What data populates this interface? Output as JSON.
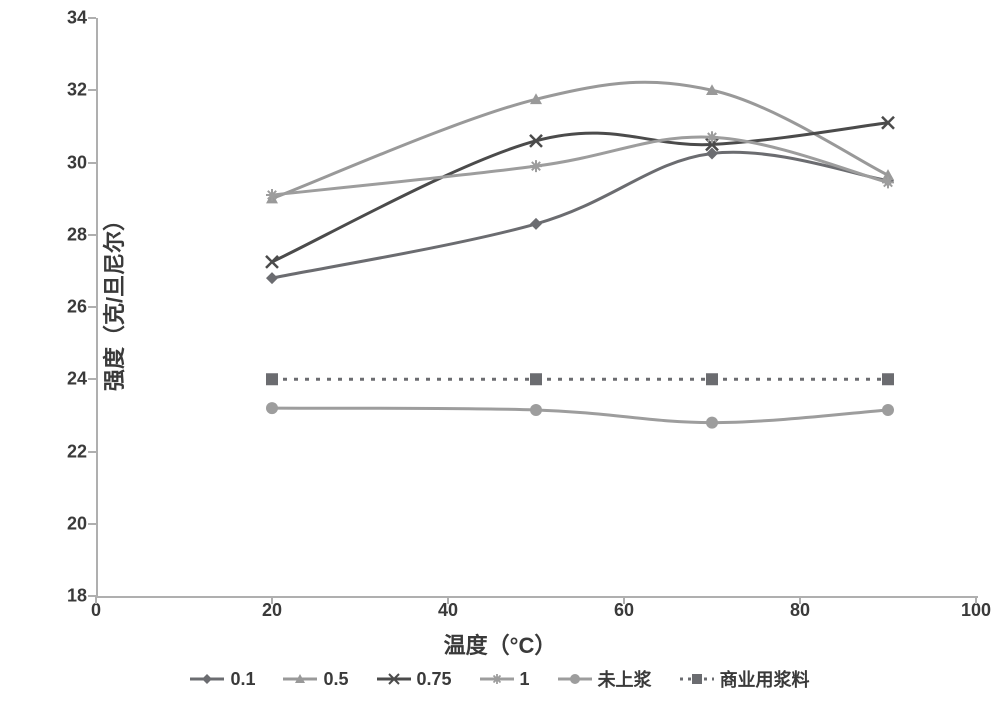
{
  "chart": {
    "type": "line",
    "background_color": "#ffffff",
    "axis_color": "#afafaf",
    "text_color": "#3a3a3a",
    "title_fontsize": 22,
    "tick_fontsize": 18,
    "legend_fontsize": 18,
    "x": {
      "label": "温度（°C）",
      "min": 0,
      "max": 100,
      "tick_step": 20,
      "ticks": [
        0,
        20,
        40,
        60,
        80,
        100
      ]
    },
    "y": {
      "label": "强度（克/旦尼尔）",
      "min": 18,
      "max": 34,
      "tick_step": 2,
      "ticks": [
        18,
        20,
        22,
        24,
        26,
        28,
        30,
        32,
        34
      ]
    },
    "series": [
      {
        "label": "0.1",
        "color": "#6b6c70",
        "line_width": 3,
        "marker": "diamond",
        "marker_size": 12,
        "dash": "none",
        "smooth": true,
        "x": [
          20,
          50,
          70,
          90
        ],
        "y": [
          26.8,
          28.3,
          30.25,
          29.5
        ]
      },
      {
        "label": "0.5",
        "color": "#999999",
        "line_width": 3,
        "marker": "triangle",
        "marker_size": 12,
        "dash": "none",
        "smooth": true,
        "x": [
          20,
          50,
          70,
          90
        ],
        "y": [
          29.0,
          31.75,
          32.0,
          29.65
        ]
      },
      {
        "label": "0.75",
        "color": "#4b4b4b",
        "line_width": 3,
        "marker": "x",
        "marker_size": 12,
        "dash": "none",
        "smooth": true,
        "x": [
          20,
          50,
          70,
          90
        ],
        "y": [
          27.25,
          30.6,
          30.5,
          31.1
        ]
      },
      {
        "label": "1",
        "color": "#9d9d9d",
        "line_width": 3,
        "marker": "asterisk",
        "marker_size": 12,
        "dash": "none",
        "smooth": true,
        "x": [
          20,
          50,
          70,
          90
        ],
        "y": [
          29.1,
          29.9,
          30.7,
          29.45
        ]
      },
      {
        "label": "未上浆",
        "color": "#9d9d9d",
        "line_width": 3,
        "marker": "circle",
        "marker_size": 12,
        "dash": "none",
        "smooth": true,
        "x": [
          20,
          50,
          70,
          90
        ],
        "y": [
          23.2,
          23.15,
          22.8,
          23.15
        ]
      },
      {
        "label": "商业用浆料",
        "color": "#6b6c70",
        "line_width": 3,
        "marker": "square",
        "marker_size": 12,
        "dash": "dot",
        "smooth": false,
        "x": [
          20,
          50,
          70,
          90
        ],
        "y": [
          24.0,
          24.0,
          24.0,
          24.0
        ]
      }
    ]
  }
}
